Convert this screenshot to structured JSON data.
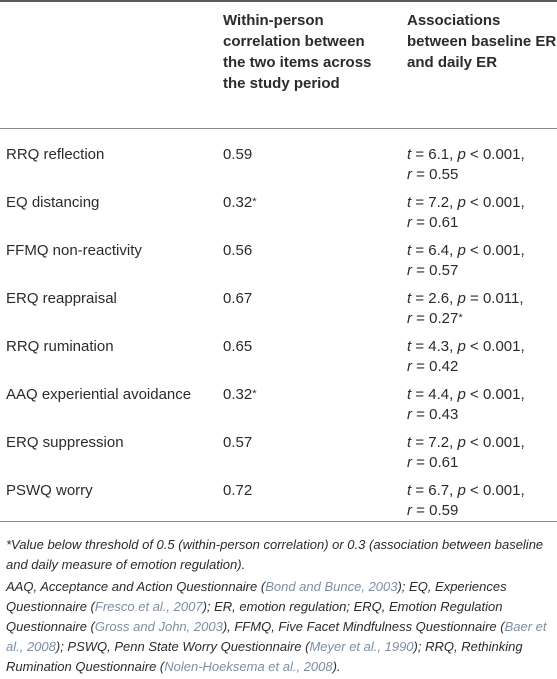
{
  "header": {
    "col2": "Within-person correlation between the two items across the study period",
    "col3": "Associations between baseline ER and daily ER"
  },
  "rows": [
    {
      "measure": "RRQ reflection",
      "corr": "0.59",
      "corr_flag": "",
      "t": "6.1",
      "p_op": "<",
      "p": "0.001",
      "r": "0.55",
      "r_flag": ""
    },
    {
      "measure": "EQ distancing",
      "corr": "0.32",
      "corr_flag": "*",
      "t": "7.2",
      "p_op": "<",
      "p": "0.001",
      "r": "0.61",
      "r_flag": ""
    },
    {
      "measure": "FFMQ non-reactivity",
      "corr": "0.56",
      "corr_flag": "",
      "t": "6.4",
      "p_op": "<",
      "p": "0.001",
      "r": "0.57",
      "r_flag": ""
    },
    {
      "measure": "ERQ reappraisal",
      "corr": "0.67",
      "corr_flag": "",
      "t": "2.6",
      "p_op": "=",
      "p": "0.011",
      "r": "0.27",
      "r_flag": "*"
    },
    {
      "measure": "RRQ rumination",
      "corr": "0.65",
      "corr_flag": "",
      "t": "4.3",
      "p_op": "<",
      "p": "0.001",
      "r": "0.42",
      "r_flag": ""
    },
    {
      "measure": "AAQ experiential avoidance",
      "corr": "0.32",
      "corr_flag": "*",
      "t": "4.4",
      "p_op": "<",
      "p": "0.001",
      "r": "0.43",
      "r_flag": ""
    },
    {
      "measure": "ERQ suppression",
      "corr": "0.57",
      "corr_flag": "",
      "t": "7.2",
      "p_op": "<",
      "p": "0.001",
      "r": "0.61",
      "r_flag": ""
    },
    {
      "measure": "PSWQ worry",
      "corr": "0.72",
      "corr_flag": "",
      "t": "6.7",
      "p_op": "<",
      "p": "0.001",
      "r": "0.59",
      "r_flag": ""
    }
  ],
  "footnotes": {
    "threshold": "*Value below threshold of 0.5 (within-person correlation) or 0.3 (association between baseline and daily measure of emotion regulation).",
    "abbrev": [
      {
        "text": "AAQ, Acceptance and Action Questionnaire (",
        "cite": "Bond and Bunce, 2003",
        "after": "); EQ, Experiences Questionnaire ("
      },
      {
        "text": "",
        "cite": "Fresco et al., 2007",
        "after": "); ER, emotion regulation; ERQ, Emotion Regulation Questionnaire ("
      },
      {
        "text": "",
        "cite": "Gross and John, 2003",
        "after": "), FFMQ, Five Facet Mindfulness Questionnaire ("
      },
      {
        "text": "",
        "cite": "Baer et al., 2008",
        "after": "); PSWQ, Penn State Worry Questionnaire ("
      },
      {
        "text": "",
        "cite": "Meyer et al., 1990",
        "after": "); RRQ, Rethinking Rumination Questionnaire ("
      },
      {
        "text": "",
        "cite": "Nolen-Hoeksema et al., 2008",
        "after": ")."
      }
    ]
  }
}
